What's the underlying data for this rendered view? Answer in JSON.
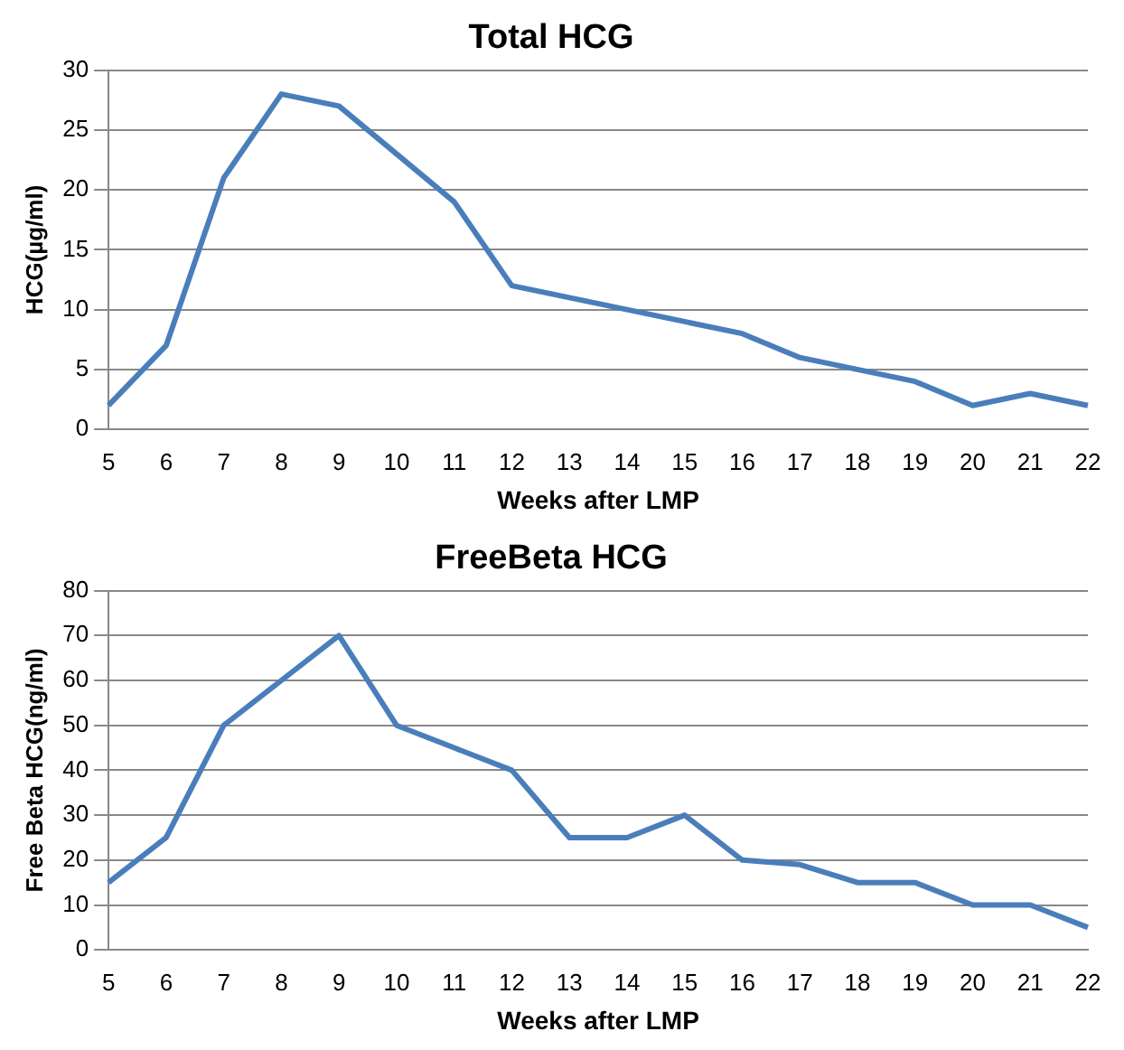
{
  "chart_data": [
    {
      "type": "line",
      "title": "Total HCG",
      "xlabel": "Weeks after LMP",
      "ylabel": "HCG(µg/ml)",
      "categories": [
        "5",
        "6",
        "7",
        "8",
        "9",
        "10",
        "11",
        "12",
        "13",
        "14",
        "15",
        "16",
        "17",
        "18",
        "19",
        "20",
        "21",
        "22"
      ],
      "series": [
        {
          "color": "#4a7ebb",
          "values": [
            2,
            7,
            21,
            28,
            27,
            23,
            19,
            12,
            11,
            10,
            9,
            8,
            6,
            5,
            4,
            2,
            3,
            2
          ]
        }
      ],
      "ylim": [
        0,
        30
      ],
      "yticks": [
        0,
        5,
        10,
        15,
        20,
        25,
        30
      ],
      "grid": "y",
      "legend": false,
      "marker": "none",
      "line_style": "solid"
    },
    {
      "type": "line",
      "title": "FreeBeta HCG",
      "xlabel": "Weeks after LMP",
      "ylabel": "Free Beta HCG(ng/ml)",
      "categories": [
        "5",
        "6",
        "7",
        "8",
        "9",
        "10",
        "11",
        "12",
        "13",
        "14",
        "15",
        "16",
        "17",
        "18",
        "19",
        "20",
        "21",
        "22"
      ],
      "series": [
        {
          "color": "#4a7ebb",
          "values": [
            15,
            25,
            50,
            60,
            70,
            50,
            45,
            40,
            25,
            25,
            30,
            20,
            19,
            15,
            15,
            10,
            10,
            5
          ]
        }
      ],
      "ylim": [
        0,
        80
      ],
      "yticks": [
        0,
        10,
        20,
        30,
        40,
        50,
        60,
        70,
        80
      ],
      "grid": "y",
      "legend": false,
      "marker": "none",
      "line_style": "solid"
    }
  ]
}
